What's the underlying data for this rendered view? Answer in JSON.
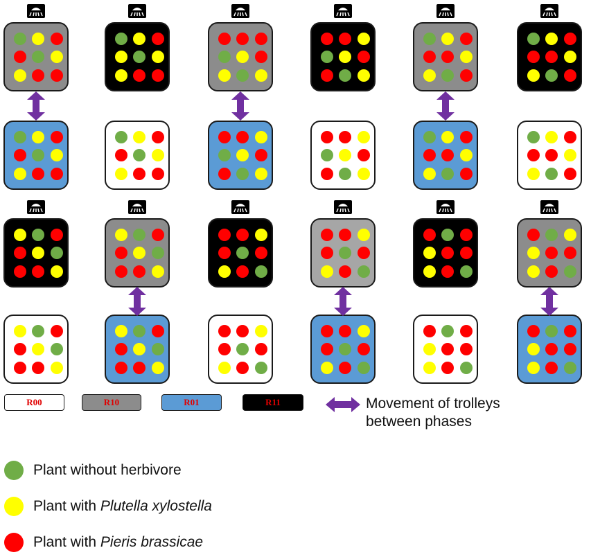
{
  "colors": {
    "R00": "#ffffff",
    "R10": "#8c8c8c",
    "R01": "#5b9bd5",
    "R11": "#000000",
    "R10_light": "#a6a6a6",
    "green": "#70ad47",
    "yellow": "#ffff00",
    "red": "#ff0000",
    "arrow": "#7030a0",
    "swatch_text": "#e00000"
  },
  "rows": [
    {
      "trays": [
        {
          "treatment": "R10",
          "grid": [
            "G",
            "Y",
            "R",
            "R",
            "G",
            "Y",
            "Y",
            "R",
            "R"
          ]
        },
        {
          "treatment": "R11",
          "grid": [
            "G",
            "Y",
            "R",
            "Y",
            "G",
            "Y",
            "Y",
            "R",
            "R"
          ]
        },
        {
          "treatment": "R10",
          "grid": [
            "R",
            "R",
            "R",
            "G",
            "Y",
            "R",
            "Y",
            "G",
            "Y"
          ]
        },
        {
          "treatment": "R11",
          "grid": [
            "R",
            "R",
            "Y",
            "G",
            "Y",
            "R",
            "R",
            "G",
            "Y"
          ]
        },
        {
          "treatment": "R10",
          "grid": [
            "G",
            "Y",
            "R",
            "R",
            "R",
            "Y",
            "Y",
            "G",
            "R"
          ]
        },
        {
          "treatment": "R11",
          "grid": [
            "G",
            "Y",
            "R",
            "R",
            "R",
            "Y",
            "Y",
            "G",
            "R"
          ]
        }
      ]
    },
    {
      "trays": [
        {
          "treatment": "R01",
          "grid": [
            "G",
            "Y",
            "R",
            "R",
            "G",
            "Y",
            "Y",
            "R",
            "R"
          ]
        },
        {
          "treatment": "R00",
          "grid": [
            "G",
            "Y",
            "R",
            "R",
            "G",
            "Y",
            "Y",
            "R",
            "R"
          ]
        },
        {
          "treatment": "R01",
          "grid": [
            "R",
            "R",
            "Y",
            "G",
            "Y",
            "R",
            "R",
            "G",
            "Y"
          ]
        },
        {
          "treatment": "R00",
          "grid": [
            "R",
            "R",
            "Y",
            "G",
            "Y",
            "R",
            "R",
            "G",
            "Y"
          ]
        },
        {
          "treatment": "R01",
          "grid": [
            "G",
            "Y",
            "R",
            "R",
            "R",
            "Y",
            "Y",
            "G",
            "R"
          ]
        },
        {
          "treatment": "R00",
          "grid": [
            "G",
            "Y",
            "R",
            "R",
            "R",
            "Y",
            "Y",
            "G",
            "R"
          ]
        }
      ]
    },
    {
      "trays": [
        {
          "treatment": "R11",
          "grid": [
            "Y",
            "G",
            "R",
            "R",
            "Y",
            "G",
            "R",
            "R",
            "Y"
          ]
        },
        {
          "treatment": "R10",
          "grid": [
            "Y",
            "G",
            "R",
            "R",
            "Y",
            "G",
            "R",
            "R",
            "Y"
          ]
        },
        {
          "treatment": "R11",
          "grid": [
            "R",
            "R",
            "Y",
            "R",
            "G",
            "R",
            "Y",
            "R",
            "G"
          ]
        },
        {
          "treatment": "R10",
          "shade": "light",
          "grid": [
            "R",
            "R",
            "Y",
            "R",
            "G",
            "R",
            "Y",
            "R",
            "G"
          ]
        },
        {
          "treatment": "R11",
          "grid": [
            "R",
            "G",
            "R",
            "Y",
            "R",
            "R",
            "Y",
            "R",
            "G"
          ]
        },
        {
          "treatment": "R10",
          "grid": [
            "R",
            "G",
            "Y",
            "Y",
            "R",
            "R",
            "Y",
            "R",
            "G"
          ]
        }
      ]
    },
    {
      "trays": [
        {
          "treatment": "R00",
          "grid": [
            "Y",
            "G",
            "R",
            "R",
            "Y",
            "G",
            "R",
            "R",
            "Y"
          ]
        },
        {
          "treatment": "R01",
          "grid": [
            "Y",
            "G",
            "R",
            "R",
            "Y",
            "G",
            "R",
            "R",
            "Y"
          ]
        },
        {
          "treatment": "R00",
          "grid": [
            "R",
            "R",
            "Y",
            "R",
            "G",
            "R",
            "Y",
            "R",
            "G"
          ]
        },
        {
          "treatment": "R01",
          "grid": [
            "R",
            "R",
            "Y",
            "R",
            "G",
            "R",
            "Y",
            "R",
            "G"
          ]
        },
        {
          "treatment": "R00",
          "grid": [
            "R",
            "G",
            "R",
            "Y",
            "R",
            "R",
            "Y",
            "R",
            "G"
          ]
        },
        {
          "treatment": "R01",
          "grid": [
            "R",
            "G",
            "R",
            "Y",
            "R",
            "R",
            "Y",
            "R",
            "G"
          ]
        }
      ]
    }
  ],
  "sprinklers": [
    {
      "row": 0,
      "columns": [
        0,
        1,
        2,
        3,
        4,
        5
      ]
    },
    {
      "row": 2,
      "columns": [
        0,
        1,
        2,
        3,
        4,
        5
      ]
    }
  ],
  "movement_arrows": [
    {
      "between_rows": [
        0,
        1
      ],
      "columns": [
        0,
        2,
        4
      ]
    },
    {
      "between_rows": [
        2,
        3
      ],
      "columns": [
        1,
        3,
        5
      ]
    }
  ],
  "treatment_key": [
    {
      "label": "R00",
      "fill": "#ffffff"
    },
    {
      "label": "R10",
      "fill": "#8c8c8c"
    },
    {
      "label": "R01",
      "fill": "#5b9bd5"
    },
    {
      "label": "R11",
      "fill": "#000000"
    }
  ],
  "movement_legend": {
    "line1": "Movement of trolleys",
    "line2": "between phases"
  },
  "plant_legend": [
    {
      "color": "#70ad47",
      "prefix": "Plant without herbivore",
      "species": ""
    },
    {
      "color": "#ffff00",
      "prefix": "Plant with ",
      "species": "Plutella xylostella"
    },
    {
      "color": "#ff0000",
      "prefix": "Plant with ",
      "species": "Pieris brassicae"
    }
  ]
}
